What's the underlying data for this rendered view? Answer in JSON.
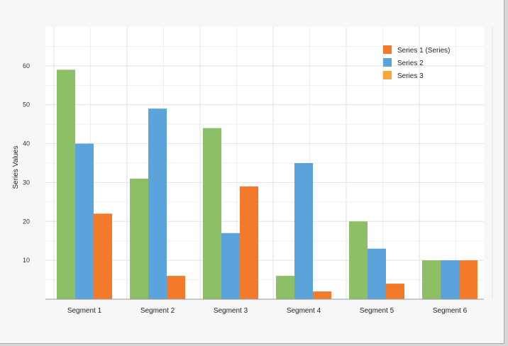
{
  "chart_data": {
    "type": "bar",
    "title": "",
    "xlabel": "",
    "ylabel": "Series Values",
    "categories": [
      "Segment 1",
      "Segment 2",
      "Segment 3",
      "Segment 4",
      "Segment 5",
      "Segment 6"
    ],
    "series": [
      {
        "name": "",
        "color": "#8dbf67",
        "values": [
          59,
          31,
          44,
          6,
          20,
          10
        ]
      },
      {
        "name": "Series 2",
        "color": "#5aa3db",
        "values": [
          40,
          49,
          17,
          35,
          13,
          10
        ]
      },
      {
        "name": "Series 1 (Series)",
        "color": "#f47a2b",
        "values": [
          22,
          6,
          29,
          2,
          4,
          10
        ]
      }
    ],
    "legend_entries": [
      {
        "label": "Series 1 (Series)",
        "color": "#f47a2b"
      },
      {
        "label": "Series 2",
        "color": "#5aa3db"
      },
      {
        "label": "Series 3",
        "color": "#f4a83a"
      }
    ],
    "ylim": [
      0,
      70
    ],
    "yticks": [
      "10",
      "20",
      "30",
      "40",
      "50",
      "60"
    ],
    "ytick_values": [
      10,
      20,
      30,
      40,
      50,
      60
    ],
    "grid": true,
    "legend_position": "top-right"
  }
}
